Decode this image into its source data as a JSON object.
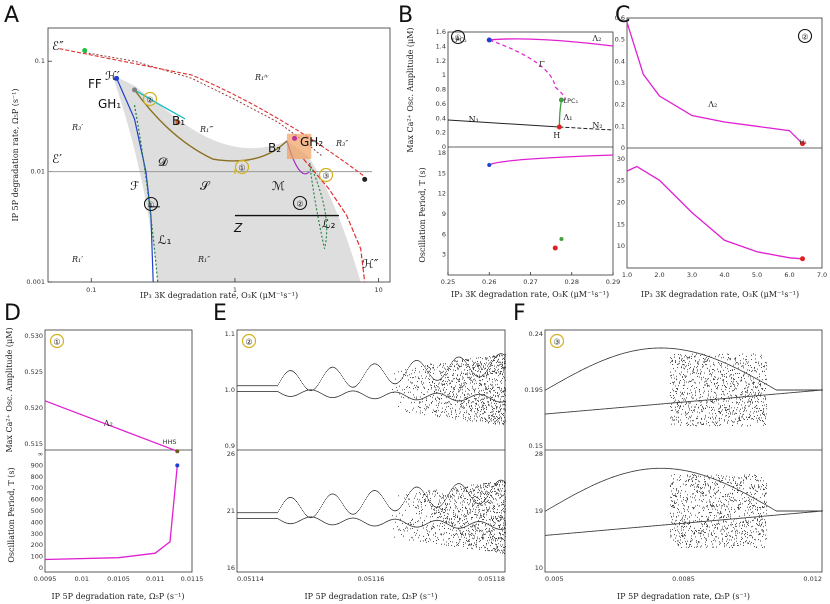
{
  "panels": [
    "A",
    "B",
    "C",
    "D",
    "E",
    "F"
  ],
  "chart_data": [
    {
      "panel": "A",
      "type": "line",
      "xlabel": "IP₃ 3K degradation rate, O₃K (μM⁻¹s⁻¹)",
      "ylabel": "IP 5P degradation rate, Ω₅P (s⁻¹)",
      "xscale": "log",
      "yscale": "log",
      "xlim": [
        0.05,
        12
      ],
      "ylim": [
        0.001,
        0.2
      ],
      "xticks": [
        "0.1",
        "1",
        "10"
      ],
      "yticks": [
        "0.1",
        "0.01",
        "0.001"
      ],
      "regions": [
        "R₁ⁱᵛ",
        "R₃′",
        "R₁‴",
        "R₃″",
        "R₁′",
        "R₁″"
      ],
      "curve_labels": [
        "ℰ″",
        "ℰ′",
        "ℋ′",
        "ℋ″",
        "𝓓",
        "𝒮",
        "ℳ",
        "ℱ",
        "ℒ₁",
        "ℒ₂",
        "Z"
      ],
      "points": [
        "FF",
        "GH₁",
        "B₁",
        "B₂",
        "GH₂"
      ],
      "markers": [
        "①",
        "②",
        "③"
      ],
      "series": [
        {
          "name": "H'",
          "x": [
            0.09,
            0.2,
            0.5,
            1.0,
            2.0,
            3.0,
            4.0
          ],
          "y": [
            0.12,
            0.1,
            0.07,
            0.045,
            0.028,
            0.019,
            0.014
          ]
        },
        {
          "name": "H''",
          "x": [
            3.0,
            4.5,
            6.0,
            7.5,
            8.0
          ],
          "y": [
            0.013,
            0.007,
            0.004,
            0.002,
            0.001
          ]
        },
        {
          "name": "F",
          "x": [
            0.15,
            0.2,
            0.24,
            0.26,
            0.27
          ],
          "y": [
            0.07,
            0.03,
            0.01,
            0.004,
            0.001
          ]
        },
        {
          "name": "S",
          "x": [
            0.4,
            0.7,
            1.0,
            1.5,
            2.3
          ],
          "y": [
            0.02,
            0.013,
            0.012,
            0.013,
            0.019
          ]
        },
        {
          "name": "E'",
          "x": [
            0.05,
            1,
            10
          ],
          "y": [
            0.01,
            0.01,
            0.01
          ]
        }
      ]
    },
    {
      "panel": "B",
      "type": "line",
      "ylabel_top": "Max Ca²⁺ Osc. Amplitude (μM)",
      "ylabel_bottom": "Oscillation Period, T (s)",
      "xlabel": "IP₃ 3K degradation rate, O₃K (μM⁻¹s⁻¹)",
      "xlim": [
        0.25,
        0.29
      ],
      "xticks": [
        "0.25",
        "0.26",
        "0.27",
        "0.28",
        "0.29"
      ],
      "ylim_top": [
        0,
        1.6
      ],
      "yticks_top": [
        "0",
        "0.2",
        "0.4",
        "0.6",
        "0.8",
        "1",
        "1.2",
        "1.4",
        "1.6"
      ],
      "ylim_bottom": [
        0,
        18
      ],
      "yticks_bottom": [
        "3",
        "6",
        "9",
        "12",
        "15",
        "18"
      ],
      "labels": [
        "Λ₂",
        "Γ",
        "Λ₁",
        "N₁",
        "N₂",
        "LPC₁",
        "LPC₂",
        "H"
      ]
    },
    {
      "panel": "C",
      "type": "line",
      "xlabel": "IP₃ 3K degradation rate, O₃K (μM⁻¹s⁻¹)",
      "xlim": [
        1.0,
        7.0
      ],
      "xticks": [
        "1.0",
        "2.0",
        "3.0",
        "4.0",
        "5.0",
        "6.0",
        "7.0"
      ],
      "ylim_top": [
        0,
        0.6
      ],
      "yticks_top": [
        "0",
        "0.1",
        "0.2",
        "0.3",
        "0.4",
        "0.5",
        "0.6"
      ],
      "ylim_bottom": [
        0,
        40
      ],
      "yticks_bottom": [
        "10",
        "15",
        "20",
        "25",
        "30"
      ],
      "labels": [
        "Λ₂",
        "H₂"
      ],
      "series_top": {
        "x": [
          1.0,
          1.5,
          2.0,
          3.0,
          4.0,
          5.0,
          6.0,
          6.4
        ],
        "y": [
          0.58,
          0.34,
          0.24,
          0.15,
          0.12,
          0.1,
          0.08,
          0.02
        ]
      },
      "series_bottom": {
        "x": [
          1.0,
          1.3,
          2.0,
          3.0,
          4.0,
          5.0,
          6.0,
          6.4
        ],
        "y": [
          29,
          30,
          27,
          20,
          14,
          11.5,
          10.2,
          10
        ]
      }
    },
    {
      "panel": "D",
      "type": "line",
      "ylabel_top": "Max Ca²⁺ Osc. Amplitude (μM)",
      "ylabel_bottom": "Oscillation Period, T (s)",
      "xlabel": "IP 5P degradation rate, Ω₅P (s⁻¹)",
      "xlim": [
        0.0095,
        0.0115
      ],
      "xticks": [
        "0.0095",
        "0.01",
        "0.0105",
        "0.011",
        "0.0115"
      ],
      "yticks_top": [
        "0.530",
        "0.525",
        "0.520",
        "0.515"
      ],
      "yticks_bottom": [
        "0",
        "100",
        "200",
        "300",
        "400",
        "500",
        "600",
        "700",
        "800",
        "900",
        "∞"
      ],
      "labels": [
        "Λ₂",
        "HHS"
      ],
      "series_top": {
        "x": [
          0.0095,
          0.0113
        ],
        "y": [
          0.521,
          0.514
        ]
      },
      "series_bottom": {
        "x": [
          0.0095,
          0.0105,
          0.011,
          0.0112,
          0.0113
        ],
        "y": [
          75,
          90,
          130,
          230,
          900
        ]
      }
    },
    {
      "panel": "E",
      "type": "scatter",
      "xlabel": "IP 5P degradation rate, Ω₅P (s⁻¹)",
      "xticks": [
        "0.05114",
        "0.05116",
        "0.05118"
      ],
      "yticks_top": [
        "1.1",
        "1.0",
        "0.9"
      ],
      "yticks_bottom": [
        "26",
        "21",
        "16"
      ]
    },
    {
      "panel": "F",
      "type": "scatter",
      "xlabel": "IP 5P degradation rate, Ω₅P (s⁻¹)",
      "xticks": [
        "0.005",
        "0.0085",
        "0.012"
      ],
      "yticks_top": [
        "0.24",
        "0.195",
        "0.15"
      ],
      "yticks_bottom": [
        "28",
        "19",
        "10"
      ]
    }
  ]
}
